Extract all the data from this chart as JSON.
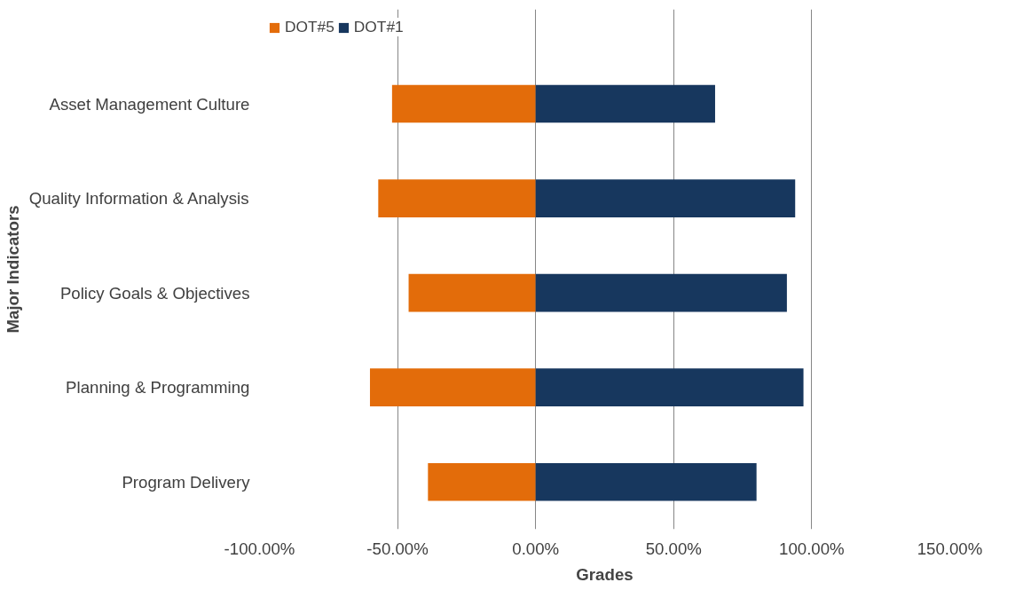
{
  "chart_data": {
    "type": "bar",
    "orientation": "horizontal",
    "stacked": true,
    "xlabel": "Grades",
    "ylabel": "Major Indicators",
    "categories": [
      "Asset Management Culture",
      "Quality Information & Analysis",
      "Policy Goals & Objectives",
      "Planning & Programming",
      "Program Delivery"
    ],
    "series": [
      {
        "name": "DOT#5",
        "color": "#e36c0a",
        "values": [
          -52,
          -57,
          -46,
          -60,
          -39
        ]
      },
      {
        "name": "DOT#1",
        "color": "#17375e",
        "values": [
          65,
          94,
          91,
          97,
          80
        ]
      }
    ],
    "xlim": [
      -100,
      150
    ],
    "xticks": [
      {
        "value": -100,
        "label": "-100.00%"
      },
      {
        "value": -50,
        "label": "-50.00%"
      },
      {
        "value": 0,
        "label": "0.00%"
      },
      {
        "value": 50,
        "label": "50.00%"
      },
      {
        "value": 100,
        "label": "100.00%"
      },
      {
        "value": 150,
        "label": "150.00%"
      }
    ],
    "grid": "x",
    "legend": "top left"
  }
}
